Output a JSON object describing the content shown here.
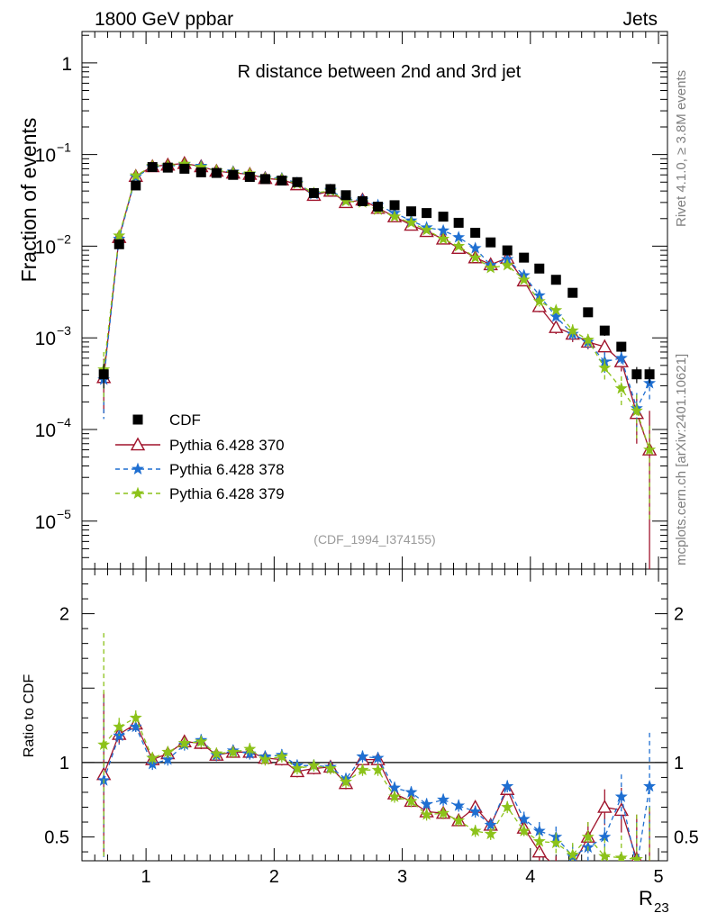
{
  "header": {
    "left": "1800 GeV ppbar",
    "right": "Jets"
  },
  "side_labels": {
    "rivet": "Rivet 4.1.0, ≥ 3.8M events",
    "mcplots": "mcplots.cern.ch [arXiv:2401.10621]"
  },
  "chart_data": {
    "type": "scatter",
    "title": "R distance between 2nd and 3rd jet",
    "analysis_id": "(CDF_1994_I374155)",
    "ylabel": "Fraction of events",
    "ratio_ylabel": "Ratio to CDF",
    "xlabel_main": "R",
    "xlabel_sub": "23",
    "xlim": [
      0.5,
      5.07
    ],
    "ylim": [
      3e-06,
      2.2
    ],
    "yscale": "log",
    "ratio_ylim": [
      0.34,
      2.3
    ],
    "x_ticks": [
      {
        "v": 1,
        "label": "1"
      },
      {
        "v": 2,
        "label": "2"
      },
      {
        "v": 3,
        "label": "3"
      },
      {
        "v": 4,
        "label": "4"
      },
      {
        "v": 5,
        "label": "5"
      }
    ],
    "y_ticks": [
      {
        "v": 1,
        "base": "1",
        "exp": ""
      },
      {
        "v": 0.1,
        "base": "10",
        "exp": "−1"
      },
      {
        "v": 0.01,
        "base": "10",
        "exp": "−2"
      },
      {
        "v": 0.001,
        "base": "10",
        "exp": "−3"
      },
      {
        "v": 0.0001,
        "base": "10",
        "exp": "−4"
      },
      {
        "v": 1e-05,
        "base": "10",
        "exp": "−5"
      }
    ],
    "ratio_ticks": [
      {
        "v": 0.5,
        "label": "0.5"
      },
      {
        "v": 1,
        "label": "1"
      },
      {
        "v": 2,
        "label": "2"
      }
    ],
    "legend": [
      "CDF",
      "Pythia 6.428 370",
      "Pythia 6.428 378",
      "Pythia 6.428 379"
    ],
    "x": [
      0.67,
      0.79,
      0.92,
      1.05,
      1.17,
      1.3,
      1.43,
      1.55,
      1.68,
      1.81,
      1.93,
      2.06,
      2.18,
      2.31,
      2.44,
      2.56,
      2.69,
      2.81,
      2.94,
      3.07,
      3.19,
      3.32,
      3.44,
      3.57,
      3.69,
      3.82,
      3.95,
      4.07,
      4.2,
      4.33,
      4.45,
      4.58,
      4.71,
      4.83,
      4.93
    ],
    "data": {
      "name": "CDF",
      "values": [
        0.0004,
        0.0105,
        0.046,
        0.073,
        0.072,
        0.07,
        0.064,
        0.063,
        0.06,
        0.057,
        0.054,
        0.052,
        0.05,
        0.038,
        0.042,
        0.036,
        0.031,
        0.027,
        0.028,
        0.024,
        0.023,
        0.021,
        0.018,
        0.014,
        0.011,
        0.009,
        0.0075,
        0.0057,
        0.0043,
        0.0031,
        0.0019,
        0.0012,
        0.0008,
        0.0004,
        0.0004
      ],
      "err": [
        0.00012,
        0.001,
        0.003,
        0.003,
        0.003,
        0.003,
        0.003,
        0.003,
        0.003,
        0.003,
        0.003,
        0.003,
        0.003,
        0.002,
        0.002,
        0.002,
        0.002,
        0.002,
        0.002,
        0.0015,
        0.0015,
        0.0015,
        0.001,
        0.001,
        0.001,
        0.0008,
        0.0006,
        0.0005,
        0.0004,
        0.0003,
        0.0002,
        0.00015,
        0.0001,
        8e-05,
        8e-05
      ]
    },
    "series": [
      {
        "name": "Pythia 6.428 370",
        "color": "#a0142c",
        "marker": "triangle",
        "dash": "",
        "values": [
          0.00037,
          0.0125,
          0.058,
          0.074,
          0.077,
          0.08,
          0.074,
          0.066,
          0.063,
          0.061,
          0.055,
          0.053,
          0.047,
          0.036,
          0.04,
          0.03,
          0.032,
          0.026,
          0.021,
          0.017,
          0.0145,
          0.012,
          0.0095,
          0.0075,
          0.0063,
          0.0074,
          0.0042,
          0.0022,
          0.0013,
          0.0011,
          0.0009,
          0.0008,
          0.00055,
          0.00015,
          6e-05
        ],
        "err": [
          0.00022,
          0.0008,
          0.002,
          0.002,
          0.002,
          0.002,
          0.002,
          0.002,
          0.002,
          0.002,
          0.002,
          0.002,
          0.0015,
          0.0015,
          0.0015,
          0.0012,
          0.0012,
          0.001,
          0.001,
          0.0008,
          0.0008,
          0.0007,
          0.0006,
          0.0006,
          0.0005,
          0.0005,
          0.0004,
          0.0003,
          0.0002,
          0.0002,
          0.00015,
          0.00015,
          0.00012,
          8e-05,
          0.0001
        ],
        "ratio": [
          0.92,
          1.19,
          1.26,
          1.02,
          1.06,
          1.14,
          1.13,
          1.05,
          1.07,
          1.07,
          1.03,
          1.02,
          0.94,
          0.96,
          0.97,
          0.86,
          1.02,
          1.02,
          0.79,
          0.74,
          0.67,
          0.66,
          0.61,
          0.7,
          0.58,
          0.82,
          0.56,
          0.4,
          0.3,
          0.3,
          0.5,
          0.7,
          0.68,
          0.35,
          0.3
        ],
        "ratio_err": [
          0.55,
          0.06,
          0.05,
          0.04,
          0.04,
          0.04,
          0.04,
          0.04,
          0.04,
          0.04,
          0.04,
          0.04,
          0.04,
          0.04,
          0.04,
          0.04,
          0.04,
          0.04,
          0.04,
          0.04,
          0.04,
          0.04,
          0.04,
          0.04,
          0.04,
          0.04,
          0.05,
          0.06,
          0.07,
          0.08,
          0.1,
          0.12,
          0.15,
          0.3,
          0.4
        ]
      },
      {
        "name": "Pythia 6.428 378",
        "color": "#1f6fd1",
        "marker": "star",
        "dash": "5,4",
        "values": [
          0.00035,
          0.012,
          0.057,
          0.073,
          0.074,
          0.078,
          0.075,
          0.066,
          0.065,
          0.061,
          0.056,
          0.055,
          0.049,
          0.037,
          0.041,
          0.032,
          0.032,
          0.028,
          0.023,
          0.019,
          0.016,
          0.0148,
          0.0125,
          0.0095,
          0.0062,
          0.0072,
          0.0048,
          0.0029,
          0.0017,
          0.0011,
          0.0009,
          0.00055,
          0.0006,
          0.00017,
          0.00032
        ],
        "err": [
          0.00022,
          0.0008,
          0.002,
          0.002,
          0.002,
          0.002,
          0.002,
          0.002,
          0.002,
          0.002,
          0.002,
          0.002,
          0.0015,
          0.0015,
          0.0015,
          0.0012,
          0.0012,
          0.001,
          0.001,
          0.0008,
          0.0008,
          0.0007,
          0.0006,
          0.0006,
          0.0005,
          0.0005,
          0.0004,
          0.0003,
          0.0002,
          0.0002,
          0.00015,
          0.00015,
          0.00012,
          8e-05,
          0.00012
        ],
        "ratio": [
          0.88,
          1.18,
          1.24,
          0.99,
          1.02,
          1.12,
          1.15,
          1.05,
          1.08,
          1.06,
          1.04,
          1.05,
          0.98,
          0.98,
          0.97,
          0.89,
          1.04,
          1.03,
          0.83,
          0.8,
          0.72,
          0.75,
          0.71,
          0.67,
          0.58,
          0.84,
          0.62,
          0.54,
          0.5,
          0.37,
          0.43,
          0.5,
          0.77,
          0.3,
          0.84
        ],
        "ratio_err": [
          0.55,
          0.06,
          0.05,
          0.04,
          0.04,
          0.04,
          0.04,
          0.04,
          0.04,
          0.04,
          0.04,
          0.04,
          0.04,
          0.04,
          0.04,
          0.04,
          0.04,
          0.04,
          0.04,
          0.04,
          0.04,
          0.04,
          0.04,
          0.04,
          0.04,
          0.04,
          0.05,
          0.06,
          0.07,
          0.08,
          0.1,
          0.12,
          0.15,
          0.3,
          0.36
        ]
      },
      {
        "name": "Pythia 6.428 379",
        "color": "#8cc21a",
        "marker": "star",
        "dash": "5,4",
        "values": [
          0.00045,
          0.013,
          0.059,
          0.075,
          0.076,
          0.079,
          0.073,
          0.067,
          0.064,
          0.062,
          0.055,
          0.054,
          0.048,
          0.038,
          0.04,
          0.031,
          0.03,
          0.025,
          0.021,
          0.018,
          0.015,
          0.012,
          0.01,
          0.0075,
          0.0058,
          0.0062,
          0.0043,
          0.0025,
          0.002,
          0.0012,
          0.00095,
          0.00047,
          0.00028,
          0.00016,
          6e-05
        ],
        "err": [
          0.00025,
          0.0008,
          0.002,
          0.002,
          0.002,
          0.002,
          0.002,
          0.002,
          0.002,
          0.002,
          0.002,
          0.002,
          0.0015,
          0.0015,
          0.0015,
          0.0012,
          0.0012,
          0.001,
          0.001,
          0.0008,
          0.0008,
          0.0007,
          0.0006,
          0.0006,
          0.0005,
          0.0005,
          0.0004,
          0.0003,
          0.0002,
          0.0002,
          0.00015,
          0.00012,
          0.0001,
          8e-05,
          5e-05
        ],
        "ratio": [
          1.12,
          1.24,
          1.3,
          1.03,
          1.07,
          1.13,
          1.14,
          1.06,
          1.07,
          1.09,
          1.02,
          1.04,
          0.96,
          0.98,
          0.96,
          0.87,
          0.95,
          0.95,
          0.77,
          0.74,
          0.65,
          0.66,
          0.61,
          0.54,
          0.52,
          0.7,
          0.54,
          0.47,
          0.46,
          0.38,
          0.5,
          0.37,
          0.36,
          0.35,
          0.3
        ],
        "ratio_err": [
          0.75,
          0.06,
          0.05,
          0.04,
          0.04,
          0.04,
          0.04,
          0.04,
          0.04,
          0.04,
          0.04,
          0.04,
          0.04,
          0.04,
          0.04,
          0.04,
          0.04,
          0.04,
          0.04,
          0.04,
          0.04,
          0.04,
          0.04,
          0.04,
          0.04,
          0.04,
          0.05,
          0.06,
          0.07,
          0.08,
          0.1,
          0.12,
          0.15,
          0.3,
          0.4
        ]
      }
    ]
  }
}
